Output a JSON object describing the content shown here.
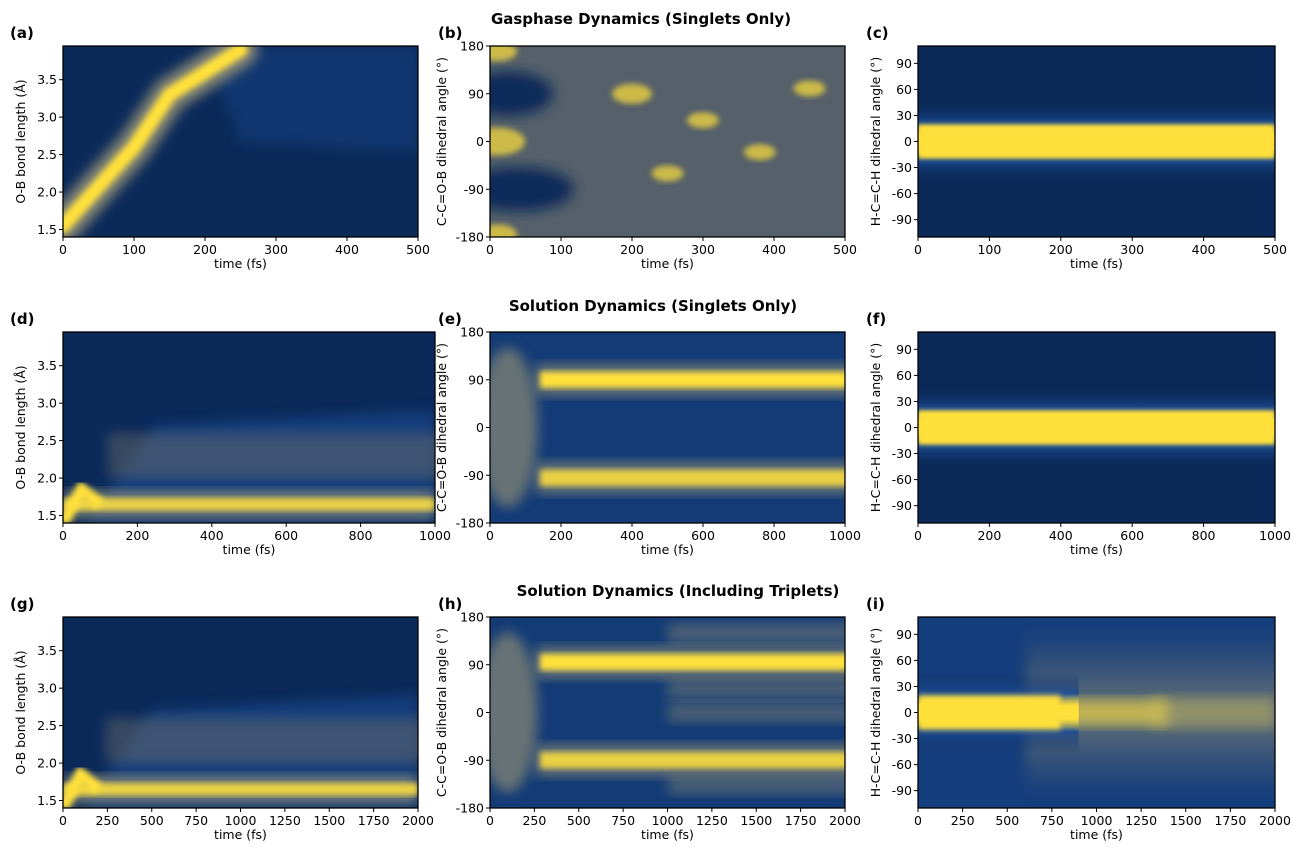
{
  "colors": {
    "low": "#0b2a5a",
    "mid": "#7a7a6e",
    "high": "#ffe03a",
    "mid2": "#1d4f9a"
  },
  "rows": [
    {
      "title": "Gasphase Dynamics (Singlets Only)"
    },
    {
      "title": "Solution Dynamics (Singlets Only)"
    },
    {
      "title": "Solution Dynamics (Including Triplets)"
    }
  ],
  "chart_data": [
    {
      "type": "heatmap",
      "panel_label": "(a)",
      "xlabel": "time (fs)",
      "ylabel": "O-B bond length (Å)",
      "xlim": [
        0,
        500
      ],
      "ylim": [
        1.4,
        3.95
      ],
      "xticks": [
        0,
        100,
        200,
        300,
        400,
        500
      ],
      "yticks": [
        1.5,
        2.0,
        2.5,
        3.0,
        3.5
      ],
      "yticklabels": [
        "1.5",
        "2.0",
        "2.5",
        "3.0",
        "3.5"
      ],
      "pattern": "ob-gas",
      "ridge": {
        "x": [
          0,
          100,
          150,
          250
        ],
        "y": [
          1.55,
          2.6,
          3.3,
          3.9
        ]
      }
    },
    {
      "type": "heatmap",
      "panel_label": "(b)",
      "xlabel": "time (fs)",
      "ylabel": "C-C=O-B dihedral angle (°)",
      "xlim": [
        0,
        500
      ],
      "ylim": [
        -180,
        180
      ],
      "xticks": [
        0,
        100,
        200,
        300,
        400,
        500
      ],
      "yticks": [
        -180,
        -90,
        0,
        90,
        180
      ],
      "yticklabels": [
        "-180",
        "-90",
        "0",
        "90",
        "180"
      ],
      "pattern": "cco-gas"
    },
    {
      "type": "heatmap",
      "panel_label": "(c)",
      "xlabel": "time (fs)",
      "ylabel": "H-C=C-H dihedral angle (°)",
      "xlim": [
        0,
        500
      ],
      "ylim": [
        -110,
        110
      ],
      "xticks": [
        0,
        100,
        200,
        300,
        400,
        500
      ],
      "yticks": [
        -90,
        -60,
        -30,
        0,
        30,
        60,
        90
      ],
      "yticklabels": [
        "-90",
        "-60",
        "-30",
        "0",
        "30",
        "60",
        "90"
      ],
      "pattern": "hcc-band",
      "band": {
        "center": 0,
        "halfwidth": 22
      }
    },
    {
      "type": "heatmap",
      "panel_label": "(d)",
      "xlabel": "time (fs)",
      "ylabel": "O-B bond length (Å)",
      "xlim": [
        0,
        1000
      ],
      "ylim": [
        1.4,
        3.95
      ],
      "xticks": [
        0,
        200,
        400,
        600,
        800,
        1000
      ],
      "yticks": [
        1.5,
        2.0,
        2.5,
        3.0,
        3.5
      ],
      "yticklabels": [
        "1.5",
        "2.0",
        "2.5",
        "3.0",
        "3.5"
      ],
      "pattern": "ob-sol",
      "band": {
        "center": 1.65
      }
    },
    {
      "type": "heatmap",
      "panel_label": "(e)",
      "xlabel": "time (fs)",
      "ylabel": "C-C=O-B dihedral angle (°)",
      "xlim": [
        0,
        1000
      ],
      "ylim": [
        -180,
        180
      ],
      "xticks": [
        0,
        200,
        400,
        600,
        800,
        1000
      ],
      "yticks": [
        -180,
        -90,
        0,
        90,
        180
      ],
      "yticklabels": [
        "-180",
        "-90",
        "0",
        "90",
        "180"
      ],
      "pattern": "cco-sol",
      "bands": [
        90,
        -95
      ]
    },
    {
      "type": "heatmap",
      "panel_label": "(f)",
      "xlabel": "time (fs)",
      "ylabel": "H-C=C-H dihedral angle (°)",
      "xlim": [
        0,
        1000
      ],
      "ylim": [
        -110,
        110
      ],
      "xticks": [
        0,
        200,
        400,
        600,
        800,
        1000
      ],
      "yticks": [
        -90,
        -60,
        -30,
        0,
        30,
        60,
        90
      ],
      "yticklabels": [
        "-90",
        "-60",
        "-30",
        "0",
        "30",
        "60",
        "90"
      ],
      "pattern": "hcc-band",
      "band": {
        "center": 0,
        "halfwidth": 22
      }
    },
    {
      "type": "heatmap",
      "panel_label": "(g)",
      "xlabel": "time (fs)",
      "ylabel": "O-B bond length (Å)",
      "xlim": [
        0,
        2000
      ],
      "ylim": [
        1.4,
        3.95
      ],
      "xticks": [
        0,
        250,
        500,
        750,
        1000,
        1250,
        1500,
        1750,
        2000
      ],
      "yticks": [
        1.5,
        2.0,
        2.5,
        3.0,
        3.5
      ],
      "yticklabels": [
        "1.5",
        "2.0",
        "2.5",
        "3.0",
        "3.5"
      ],
      "pattern": "ob-sol",
      "band": {
        "center": 1.65
      }
    },
    {
      "type": "heatmap",
      "panel_label": "(h)",
      "xlabel": "time (fs)",
      "ylabel": "C-C=O-B dihedral angle (°)",
      "xlim": [
        0,
        2000
      ],
      "ylim": [
        -180,
        180
      ],
      "xticks": [
        0,
        250,
        500,
        750,
        1000,
        1250,
        1500,
        1750,
        2000
      ],
      "yticks": [
        -180,
        -90,
        0,
        90,
        180
      ],
      "yticklabels": [
        "-180",
        "-90",
        "0",
        "90",
        "180"
      ],
      "pattern": "cco-trip",
      "bands": [
        95,
        -90
      ]
    },
    {
      "type": "heatmap",
      "panel_label": "(i)",
      "xlabel": "time (fs)",
      "ylabel": "H-C=C-H dihedral angle (°)",
      "xlim": [
        0,
        2000
      ],
      "ylim": [
        -110,
        110
      ],
      "xticks": [
        0,
        250,
        500,
        750,
        1000,
        1250,
        1500,
        1750,
        2000
      ],
      "yticks": [
        -90,
        -60,
        -30,
        0,
        30,
        60,
        90
      ],
      "yticklabels": [
        "-90",
        "-60",
        "-30",
        "0",
        "30",
        "60",
        "90"
      ],
      "pattern": "hcc-spread",
      "band": {
        "center": 0,
        "halfwidth": 22
      }
    }
  ]
}
